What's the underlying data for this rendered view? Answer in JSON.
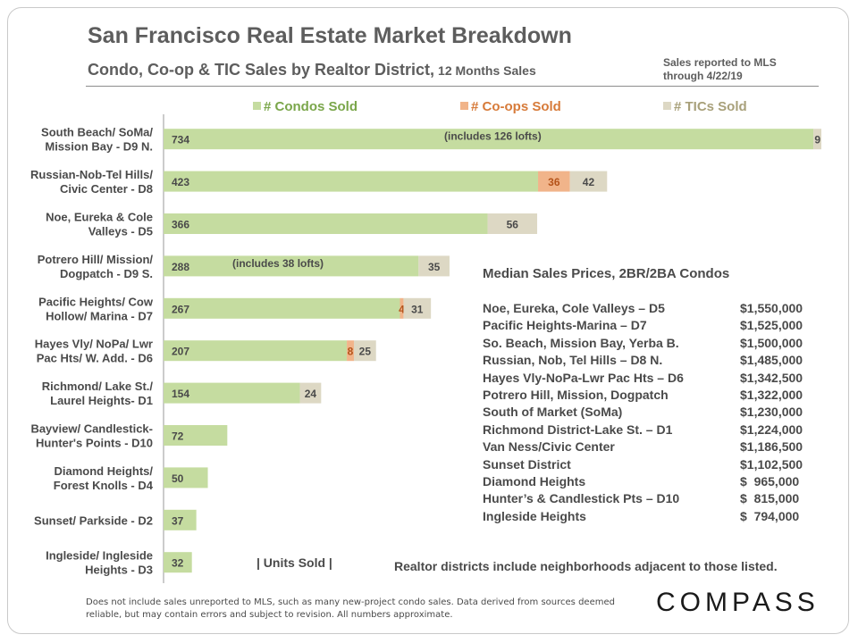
{
  "title": "San Francisco Real Estate Market Breakdown",
  "subtitle": "Condo, Co-op & TIC Sales by Realtor District,",
  "subtitle_small": "12 Months Sales",
  "source_note_line1": "Sales reported to MLS",
  "source_note_line2": "through 4/22/19",
  "units_label": "| Units Sold |",
  "realtor_note": "Realtor districts include neighborhoods adjacent to those listed.",
  "footnote": "Does not include sales unreported to MLS, such as many new-project condo sales. Data derived from sources deemed reliable, but may contain errors and subject to revision. All numbers approximate.",
  "logo": "COMPASS",
  "colors": {
    "condos": "#c5dca0",
    "coops": "#f1b48a",
    "tics": "#ddd8c4",
    "condos_legend": "#7aa64a",
    "coops_legend": "#d77b3a",
    "tics_legend": "#a8a07a",
    "text": "#4a4a4a"
  },
  "chart_data": {
    "type": "bar",
    "orientation": "horizontal",
    "stacked": true,
    "legend_placement": "top",
    "categories": [
      [
        "South Beach/ SoMa/",
        "Mission Bay - D9 N."
      ],
      [
        "Russian-Nob-Tel Hills/",
        "Civic Center - D8"
      ],
      [
        "Noe, Eureka & Cole",
        "Valleys - D5"
      ],
      [
        "Potrero Hill/ Mission/",
        "Dogpatch - D9 S."
      ],
      [
        "Pacific Heights/ Cow",
        "Hollow/ Marina - D7"
      ],
      [
        "Hayes Vly/ NoPa/ Lwr",
        "Pac Hts/ W. Add. - D6"
      ],
      [
        "Richmond/ Lake St./",
        "Laurel Heights- D1"
      ],
      [
        "Bayview/ Candlestick-",
        "Hunter's Points - D10"
      ],
      [
        "Diamond Heights/",
        "Forest Knolls - D4"
      ],
      [
        "Sunset/ Parkside - D2"
      ],
      [
        "Ingleside/ Ingleside",
        "Heights - D3"
      ]
    ],
    "series": [
      {
        "name": "# Condos Sold",
        "values": [
          734,
          423,
          366,
          288,
          267,
          207,
          154,
          72,
          50,
          37,
          32
        ]
      },
      {
        "name": "# Co-ops Sold",
        "values": [
          0,
          36,
          0,
          0,
          4,
          8,
          0,
          0,
          0,
          0,
          0
        ]
      },
      {
        "name": "# TICs Sold",
        "values": [
          9,
          42,
          56,
          35,
          31,
          25,
          24,
          0,
          0,
          0,
          0
        ]
      }
    ],
    "annotations": [
      {
        "category_index": 0,
        "text": "(includes 126 lofts)"
      },
      {
        "category_index": 3,
        "text": "(includes 38 lofts)"
      }
    ],
    "xlim": [
      0,
      743
    ],
    "grid": false
  },
  "median_prices": {
    "title": "Median Sales Prices, 2BR/2BA Condos",
    "rows": [
      {
        "name": "Noe, Eureka, Cole Valleys – D5",
        "price": "$1,550,000"
      },
      {
        "name": "Pacific Heights-Marina – D7",
        "price": "$1,525,000"
      },
      {
        "name": "So. Beach, Mission Bay, Yerba B.",
        "price": "$1,500,000"
      },
      {
        "name": "Russian, Nob, Tel Hills – D8 N.",
        "price": "$1,485,000"
      },
      {
        "name": "Hayes Vly-NoPa-Lwr Pac Hts – D6",
        "price": "$1,342,500"
      },
      {
        "name": "Potrero Hill, Mission, Dogpatch",
        "price": "$1,322,000"
      },
      {
        "name": "South of Market (SoMa)",
        "price": "$1,230,000"
      },
      {
        "name": "Richmond District-Lake St. – D1",
        "price": "$1,224,000"
      },
      {
        "name": "Van Ness/Civic Center",
        "price": "$1,186,500"
      },
      {
        "name": "Sunset District",
        "price": "$1,102,500"
      },
      {
        "name": "Diamond Heights",
        "price": "$  965,000"
      },
      {
        "name": "Hunter’s & Candlestick Pts – D10",
        "price": "$  815,000"
      },
      {
        "name": "Ingleside Heights",
        "price": "$  794,000"
      }
    ]
  }
}
